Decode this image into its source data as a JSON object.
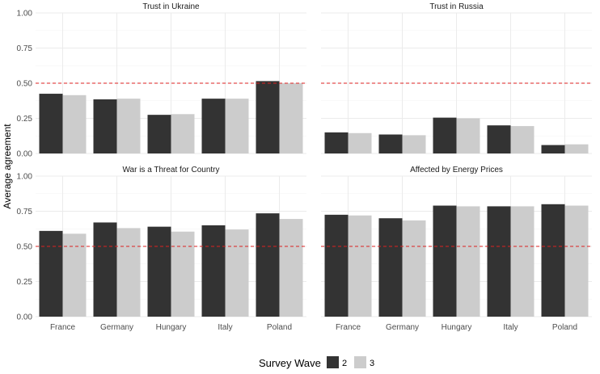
{
  "chart_data": {
    "type": "bar",
    "ylabel": "Average agreement",
    "ylim": [
      0,
      1
    ],
    "yticks": [
      0,
      0.25,
      0.5,
      0.75,
      1
    ],
    "ytick_labels": [
      "0.00",
      "0.25",
      "0.50",
      "0.75",
      "1.00"
    ],
    "reference_line": 0.5,
    "categories": [
      "France",
      "Germany",
      "Hungary",
      "Italy",
      "Poland"
    ],
    "colors": {
      "wave2": "#333333",
      "wave3": "#cccccc",
      "refline": "#dd2222",
      "grid": "#ebebeb"
    },
    "legend": {
      "title": "Survey Wave",
      "entries": [
        "2",
        "3"
      ],
      "position": "bottom"
    },
    "panels": [
      {
        "title": "Trust in Ukraine",
        "series": [
          {
            "name": "2",
            "values": [
              0.425,
              0.385,
              0.275,
              0.39,
              0.515
            ]
          },
          {
            "name": "3",
            "values": [
              0.415,
              0.39,
              0.28,
              0.39,
              0.5
            ]
          }
        ]
      },
      {
        "title": "Trust in Russia",
        "series": [
          {
            "name": "2",
            "values": [
              0.15,
              0.135,
              0.255,
              0.2,
              0.06
            ]
          },
          {
            "name": "3",
            "values": [
              0.145,
              0.13,
              0.25,
              0.195,
              0.065
            ]
          }
        ]
      },
      {
        "title": "War is a Threat for Country",
        "series": [
          {
            "name": "2",
            "values": [
              0.61,
              0.67,
              0.64,
              0.65,
              0.735
            ]
          },
          {
            "name": "3",
            "values": [
              0.59,
              0.63,
              0.605,
              0.62,
              0.695
            ]
          }
        ]
      },
      {
        "title": "Affected by Energy Prices",
        "series": [
          {
            "name": "2",
            "values": [
              0.725,
              0.7,
              0.79,
              0.785,
              0.8
            ]
          },
          {
            "name": "3",
            "values": [
              0.72,
              0.685,
              0.785,
              0.785,
              0.79
            ]
          }
        ]
      }
    ]
  }
}
